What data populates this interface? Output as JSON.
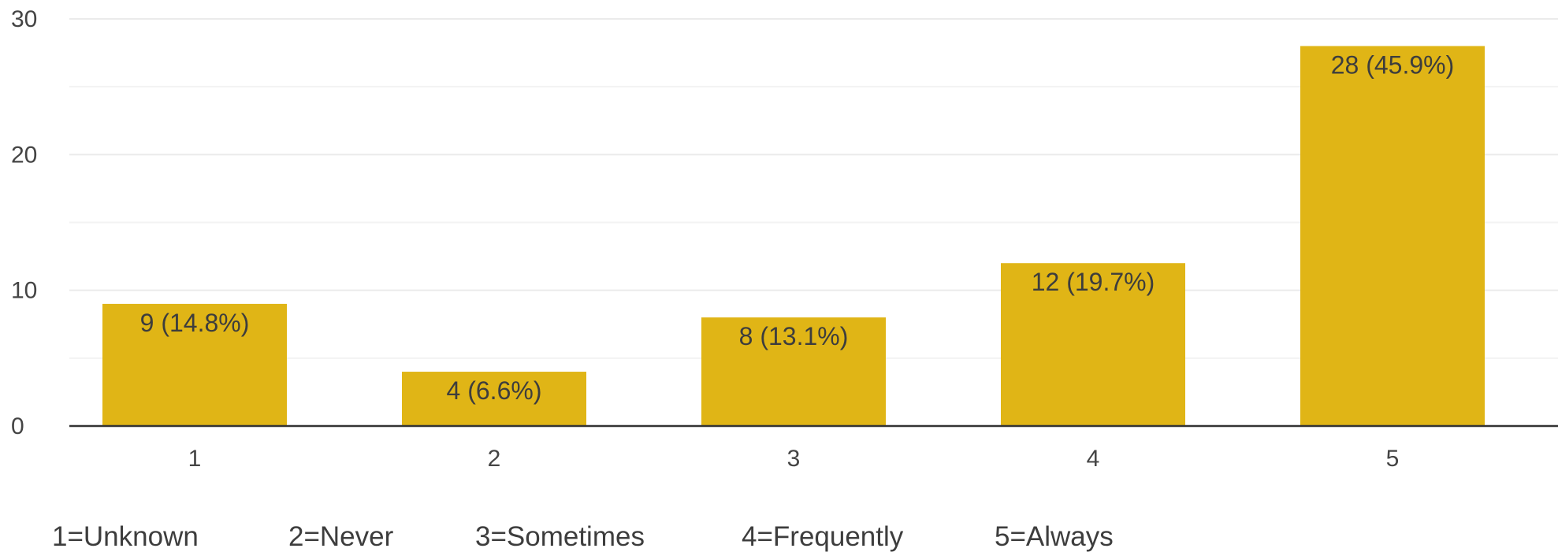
{
  "chart_data": {
    "type": "bar",
    "categories": [
      "1",
      "2",
      "3",
      "4",
      "5"
    ],
    "values": [
      9,
      4,
      8,
      12,
      28
    ],
    "data_labels": [
      "9 (14.8%)",
      "4 (6.6%)",
      "8 (13.1%)",
      "12 (19.7%)",
      "28 (45.9%)"
    ],
    "title": "",
    "xlabel": "",
    "ylabel": "",
    "ylim": [
      0,
      30
    ],
    "yticks": [
      0,
      10,
      20,
      30
    ],
    "grid": true,
    "legend_placement": "bottom",
    "bar_color": "#e0b516",
    "legend": [
      "1=Unknown",
      "2=Never",
      "3=Sometimes",
      "4=Frequently",
      "5=Always"
    ]
  }
}
